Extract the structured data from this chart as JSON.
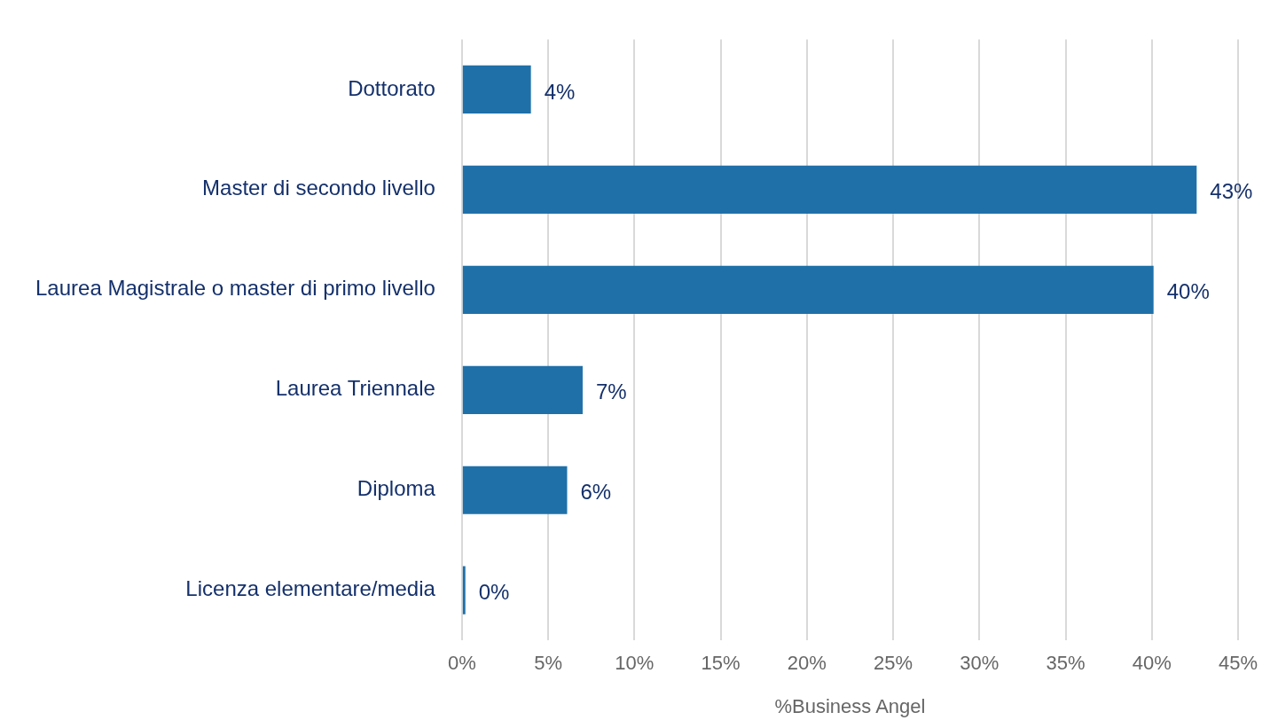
{
  "chart_data": {
    "type": "bar",
    "orientation": "horizontal",
    "categories": [
      "Dottorato",
      "Master di secondo livello",
      "Laurea Magistrale o master di primo livello",
      "Laurea Triennale",
      "Diploma",
      "Licenza elementare/media"
    ],
    "values": [
      4,
      42.6,
      40.1,
      7,
      6.1,
      0.2
    ],
    "value_labels": [
      "4%",
      "43%",
      "40%",
      "7%",
      "6%",
      "0%"
    ],
    "color": "#1f70a9",
    "xlim": [
      0,
      45
    ],
    "xticks": [
      {
        "value": 0,
        "label": "0%"
      },
      {
        "value": 5,
        "label": "5%"
      },
      {
        "value": 10,
        "label": "10%"
      },
      {
        "value": 15,
        "label": "15%"
      },
      {
        "value": 20,
        "label": "20%"
      },
      {
        "value": 25,
        "label": "25%"
      },
      {
        "value": 30,
        "label": "30%"
      },
      {
        "value": 35,
        "label": "35%"
      },
      {
        "value": 40,
        "label": "40%"
      },
      {
        "value": 45,
        "label": "45%"
      }
    ],
    "xlabel": "%Business Angel",
    "grid": "x",
    "legend": false
  }
}
